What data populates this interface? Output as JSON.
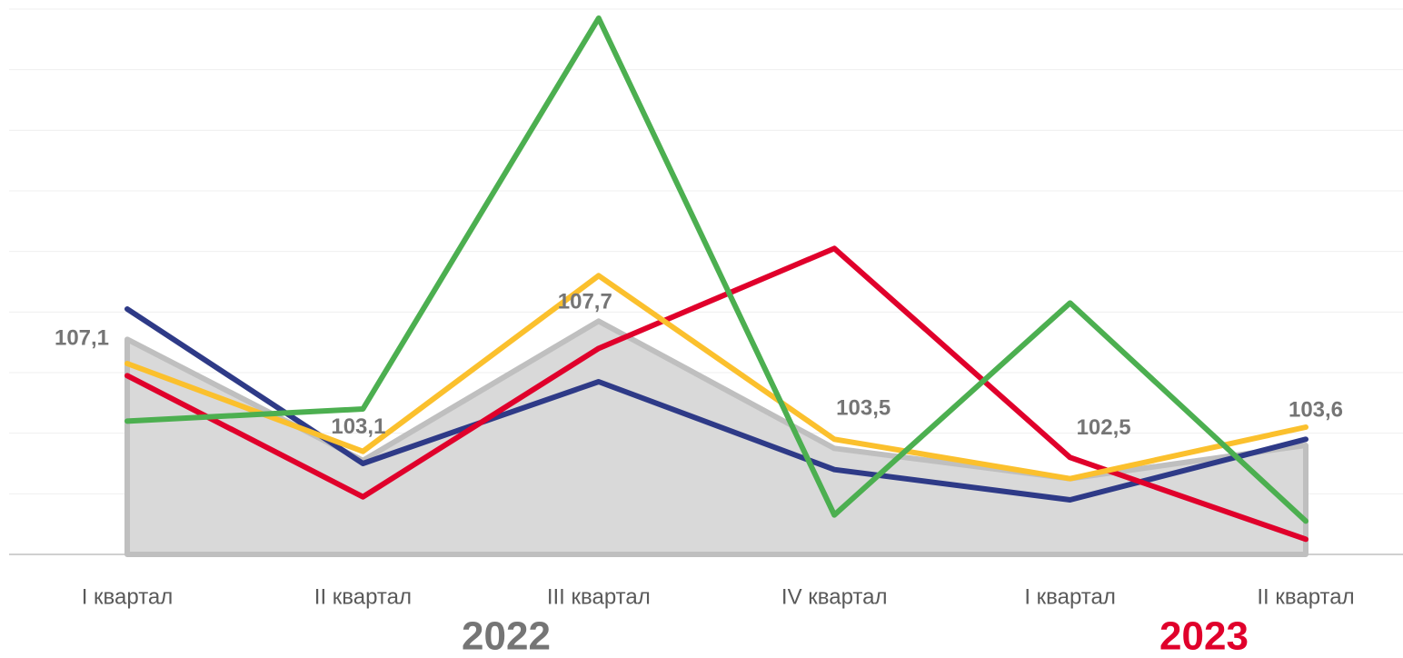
{
  "chart_data": {
    "type": "line",
    "categories": [
      "I квартал",
      "II квартал",
      "III квартал",
      "IV квартал",
      "I квартал",
      "II квартал"
    ],
    "year_groups": [
      {
        "label": "2022",
        "color": "#757575"
      },
      {
        "label": "2023",
        "color": "#e0002b"
      }
    ],
    "series": [
      {
        "type": "area",
        "color": "#bfbfbf",
        "fill": "#d9d9d9",
        "values": [
          107.1,
          103.1,
          107.7,
          103.5,
          102.5,
          103.6
        ],
        "value_labels": [
          "107,1",
          "103,1",
          "107,7",
          "103,5",
          "102,5",
          "103,6"
        ]
      },
      {
        "color": "#2e3a87",
        "values": [
          108.1,
          103.0,
          105.7,
          102.8,
          101.8,
          103.8
        ]
      },
      {
        "color": "#e0002b",
        "values": [
          105.9,
          101.9,
          106.8,
          110.1,
          103.2,
          100.5
        ]
      },
      {
        "color": "#fbc02d",
        "values": [
          106.3,
          103.4,
          109.2,
          103.8,
          102.5,
          104.2
        ]
      },
      {
        "color": "#4caf50",
        "values": [
          104.4,
          104.8,
          117.7,
          101.3,
          108.3,
          101.1
        ]
      }
    ],
    "ylim": [
      100,
      118
    ],
    "yticks": [
      100,
      102,
      104,
      106,
      108,
      110,
      112,
      114,
      116,
      118
    ],
    "grid": true
  }
}
